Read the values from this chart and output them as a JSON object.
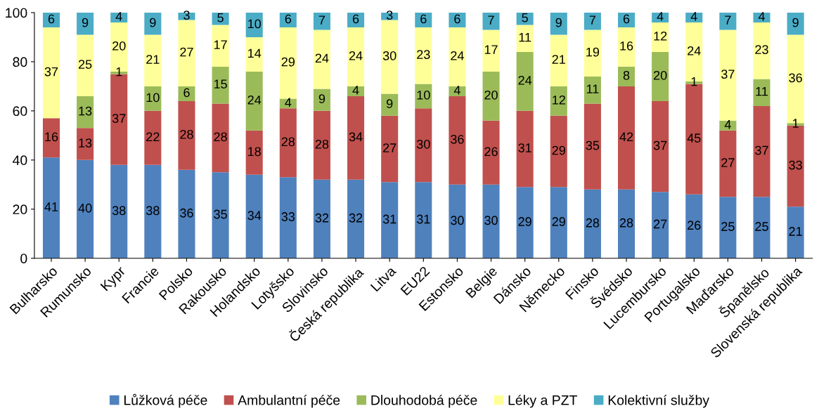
{
  "chart_data": {
    "type": "bar",
    "stacked": true,
    "categories": [
      "Bulharsko",
      "Rumunsko",
      "Kypr",
      "Francie",
      "Polsko",
      "Rakousko",
      "Holandsko",
      "Lotyšsko",
      "Slovinsko",
      "Česká republika",
      "Litva",
      "EU22",
      "Estonsko",
      "Belgie",
      "Dánsko",
      "Německo",
      "Finsko",
      "Švédsko",
      "Lucembursko",
      "Portugalsko",
      "Maďarsko",
      "Španělsko",
      "Slovenská republika"
    ],
    "series": [
      {
        "name": "Lůžková péče",
        "color": "#4f81bd",
        "values": [
          41,
          40,
          38,
          38,
          36,
          35,
          34,
          33,
          32,
          32,
          31,
          31,
          30,
          30,
          29,
          29,
          28,
          28,
          27,
          26,
          25,
          25,
          21
        ]
      },
      {
        "name": "Ambulantní péče",
        "color": "#c0504d",
        "values": [
          16,
          13,
          37,
          22,
          28,
          28,
          18,
          28,
          28,
          34,
          27,
          30,
          36,
          26,
          31,
          29,
          35,
          42,
          37,
          45,
          27,
          37,
          33
        ]
      },
      {
        "name": "Dlouhodobá péče",
        "color": "#9bbb59",
        "values": [
          0,
          13,
          1,
          10,
          6,
          15,
          24,
          4,
          9,
          4,
          9,
          10,
          4,
          20,
          24,
          12,
          11,
          8,
          20,
          1,
          4,
          11,
          1
        ],
        "value_labels": [
          null,
          "13",
          "1",
          "10",
          "6",
          "15",
          "24",
          "4",
          "9",
          "4",
          "9",
          "10",
          "4",
          "20",
          "24",
          "12",
          "11",
          "8",
          "20",
          "1",
          "4",
          "11",
          "1"
        ]
      },
      {
        "name": "Léky a PZT",
        "color": "#ffff99",
        "values": [
          37,
          25,
          20,
          21,
          27,
          17,
          14,
          29,
          24,
          24,
          30,
          23,
          24,
          17,
          11,
          21,
          19,
          16,
          12,
          24,
          37,
          23,
          36
        ]
      },
      {
        "name": "Kolektivní služby",
        "color": "#4bacc6",
        "values": [
          6,
          9,
          4,
          9,
          3,
          5,
          10,
          6,
          7,
          6,
          3,
          6,
          6,
          7,
          5,
          9,
          7,
          6,
          4,
          4,
          7,
          4,
          9
        ]
      }
    ],
    "ylim": [
      0,
      100
    ],
    "yticks": [
      0,
      20,
      40,
      60,
      80,
      100
    ],
    "data_labels": true,
    "legend": "bottom",
    "grid": false
  }
}
